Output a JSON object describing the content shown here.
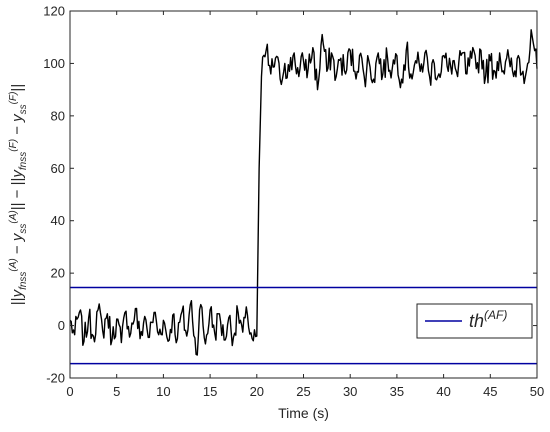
{
  "chart_data": {
    "type": "line",
    "xlabel": "Time (s)",
    "ylabel": "||y_fnss^(A) − y_ss^(A)|| − ||y_fnss^(F) − y_ss^(F)||",
    "xlim": [
      0,
      50
    ],
    "ylim": [
      -20,
      120
    ],
    "x_ticks": [
      "0",
      "5",
      "10",
      "15",
      "20",
      "25",
      "30",
      "35",
      "40",
      "45",
      "50"
    ],
    "y_ticks": [
      "-20",
      "0",
      "20",
      "40",
      "60",
      "80",
      "100",
      "120"
    ],
    "grid": false,
    "legend": {
      "position": "right",
      "entries": [
        {
          "label": "th^(AF)",
          "color": "#0000a0"
        }
      ]
    },
    "series": [
      {
        "color": "#000000",
        "description_points": [
          [
            0.0,
            2.0
          ],
          [
            0.5,
            -3.5
          ],
          [
            1.0,
            5.0
          ],
          [
            1.5,
            -6.0
          ],
          [
            2.0,
            3.0
          ],
          [
            2.5,
            -4.0
          ],
          [
            3.0,
            6.0
          ],
          [
            3.5,
            -2.0
          ],
          [
            4.0,
            4.5
          ],
          [
            4.5,
            -5.5
          ],
          [
            5.0,
            2.5
          ],
          [
            5.5,
            -6.5
          ],
          [
            6.0,
            5.5
          ],
          [
            6.5,
            -3.0
          ],
          [
            7.0,
            6.5
          ],
          [
            7.5,
            -5.0
          ],
          [
            8.0,
            3.5
          ],
          [
            8.5,
            -4.5
          ],
          [
            9.0,
            5.0
          ],
          [
            9.5,
            -3.5
          ],
          [
            10.0,
            2.0
          ],
          [
            10.5,
            -6.0
          ],
          [
            11.0,
            4.0
          ],
          [
            11.5,
            -5.0
          ],
          [
            12.0,
            5.5
          ],
          [
            12.5,
            -4.0
          ],
          [
            13.0,
            9.5
          ],
          [
            13.5,
            -11.0
          ],
          [
            14.0,
            8.0
          ],
          [
            14.5,
            -7.0
          ],
          [
            15.0,
            6.0
          ],
          [
            15.5,
            -3.0
          ],
          [
            16.0,
            4.5
          ],
          [
            16.5,
            -5.5
          ],
          [
            17.0,
            3.0
          ],
          [
            17.5,
            -4.5
          ],
          [
            18.0,
            5.0
          ],
          [
            18.5,
            -2.5
          ],
          [
            19.0,
            4.0
          ],
          [
            19.5,
            -5.0
          ],
          [
            20.0,
            -4.0
          ],
          [
            20.25,
            60.0
          ],
          [
            20.5,
            95.0
          ],
          [
            21.0,
            105.0
          ],
          [
            21.5,
            96.0
          ],
          [
            22.0,
            102.0
          ],
          [
            22.5,
            94.0
          ],
          [
            23.0,
            100.0
          ],
          [
            23.5,
            97.0
          ],
          [
            24.0,
            104.0
          ],
          [
            24.5,
            95.0
          ],
          [
            25.0,
            101.0
          ],
          [
            25.5,
            98.0
          ],
          [
            26.0,
            106.0
          ],
          [
            26.5,
            90.0
          ],
          [
            27.0,
            111.0
          ],
          [
            27.5,
            97.0
          ],
          [
            28.0,
            104.0
          ],
          [
            28.5,
            95.0
          ],
          [
            29.0,
            102.0
          ],
          [
            29.5,
            96.0
          ],
          [
            30.0,
            105.0
          ],
          [
            30.5,
            97.0
          ],
          [
            31.0,
            103.0
          ],
          [
            31.5,
            95.0
          ],
          [
            32.0,
            101.0
          ],
          [
            32.5,
            94.0
          ],
          [
            33.0,
            104.0
          ],
          [
            33.5,
            96.0
          ],
          [
            34.0,
            102.0
          ],
          [
            34.5,
            98.0
          ],
          [
            35.0,
            103.0
          ],
          [
            35.5,
            94.0
          ],
          [
            36.0,
            105.0
          ],
          [
            36.5,
            96.0
          ],
          [
            37.0,
            101.0
          ],
          [
            37.5,
            97.0
          ],
          [
            38.0,
            104.0
          ],
          [
            38.5,
            95.0
          ],
          [
            39.0,
            100.0
          ],
          [
            39.5,
            96.0
          ],
          [
            40.0,
            103.0
          ],
          [
            40.5,
            97.0
          ],
          [
            41.0,
            101.0
          ],
          [
            41.5,
            95.0
          ],
          [
            42.0,
            104.0
          ],
          [
            42.5,
            96.0
          ],
          [
            43.0,
            102.0
          ],
          [
            43.5,
            98.0
          ],
          [
            44.0,
            105.0
          ],
          [
            44.5,
            95.0
          ],
          [
            45.0,
            101.0
          ],
          [
            45.5,
            97.0
          ],
          [
            46.0,
            104.0
          ],
          [
            46.5,
            96.0
          ],
          [
            47.0,
            102.0
          ],
          [
            47.5,
            95.0
          ],
          [
            48.0,
            103.0
          ],
          [
            48.5,
            97.0
          ],
          [
            49.0,
            100.0
          ],
          [
            49.5,
            110.0
          ],
          [
            50.0,
            98.0
          ]
        ]
      },
      {
        "color": "#0000a0",
        "x": [
          0,
          50
        ],
        "y": [
          14.5,
          14.5
        ]
      },
      {
        "color": "#0000a0",
        "x": [
          0,
          50
        ],
        "y": [
          -14.5,
          -14.5
        ]
      }
    ]
  }
}
